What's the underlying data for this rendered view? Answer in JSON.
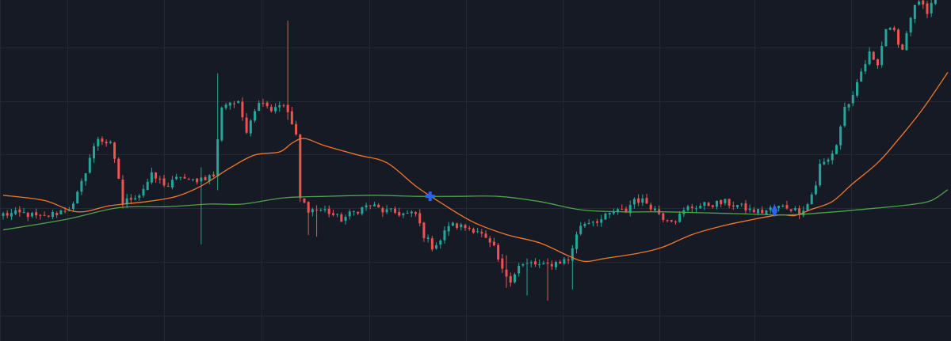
{
  "colors": {
    "background": "#161a25",
    "grid": "#242833",
    "up": "#26a69a",
    "down": "#ef5350",
    "ma_fast": "#f2772c",
    "ma_slow": "#4ea34c",
    "cross_marker": "#2962ff"
  },
  "chart_data": {
    "type": "candlestick",
    "grid": true,
    "y_range": [
      40,
      106
    ],
    "x_range": [
      0,
      229
    ],
    "candle_count": 230,
    "waypoints": [
      [
        0,
        64.5
      ],
      [
        5,
        64.7
      ],
      [
        9,
        63.8
      ],
      [
        13,
        64.8
      ],
      [
        17,
        66.2
      ],
      [
        19,
        70.5
      ],
      [
        21,
        75.5
      ],
      [
        23,
        79.3
      ],
      [
        26,
        78.0
      ],
      [
        28,
        71.5
      ],
      [
        29,
        66.5
      ],
      [
        31,
        67.8
      ],
      [
        33,
        68.4
      ],
      [
        36,
        72.0
      ],
      [
        40,
        70.0
      ],
      [
        43,
        72.0
      ],
      [
        45,
        70.8
      ],
      [
        48,
        71.5
      ],
      [
        51,
        72.0
      ],
      [
        53,
        85.5
      ],
      [
        55,
        86.3
      ],
      [
        57,
        85.8
      ],
      [
        59,
        81.0
      ],
      [
        61,
        85.0
      ],
      [
        63,
        86.7
      ],
      [
        65,
        84.8
      ],
      [
        67,
        86.0
      ],
      [
        69,
        84.3
      ],
      [
        71,
        79.5
      ],
      [
        72,
        67.5
      ],
      [
        74,
        65.5
      ],
      [
        78,
        65.3
      ],
      [
        82,
        63.5
      ],
      [
        85,
        65.0
      ],
      [
        89,
        66.4
      ],
      [
        92,
        65.2
      ],
      [
        97,
        64.6
      ],
      [
        100,
        64.5
      ],
      [
        102,
        60.5
      ],
      [
        104,
        58.3
      ],
      [
        106,
        59.5
      ],
      [
        108,
        62.5
      ],
      [
        112,
        62.0
      ],
      [
        115,
        61.5
      ],
      [
        117,
        59.5
      ],
      [
        119,
        57.8
      ],
      [
        121,
        53.5
      ],
      [
        123,
        52.0
      ],
      [
        125,
        54.5
      ],
      [
        128,
        55.0
      ],
      [
        131,
        54.5
      ],
      [
        134,
        55.2
      ],
      [
        137,
        55.8
      ],
      [
        138,
        58.2
      ],
      [
        140,
        62.5
      ],
      [
        142,
        63.2
      ],
      [
        145,
        63.5
      ],
      [
        148,
        65.0
      ],
      [
        151,
        65.2
      ],
      [
        153,
        67.5
      ],
      [
        156,
        66.8
      ],
      [
        158,
        65.5
      ],
      [
        160,
        64.0
      ],
      [
        163,
        63.5
      ],
      [
        166,
        65.8
      ],
      [
        169,
        66.2
      ],
      [
        172,
        66.5
      ],
      [
        175,
        66.8
      ],
      [
        178,
        66.2
      ],
      [
        181,
        65.3
      ],
      [
        184,
        65.0
      ],
      [
        187,
        65.8
      ],
      [
        190,
        66.0
      ],
      [
        193,
        65.0
      ],
      [
        195,
        66.5
      ],
      [
        197,
        70.3
      ],
      [
        198,
        74.0
      ],
      [
        200,
        75.0
      ],
      [
        202,
        78.0
      ],
      [
        204,
        85.2
      ],
      [
        206,
        87.0
      ],
      [
        208,
        92.0
      ],
      [
        210,
        95.5
      ],
      [
        212,
        94.0
      ],
      [
        214,
        100.5
      ],
      [
        216,
        99.5
      ],
      [
        218,
        96.5
      ],
      [
        220,
        103.0
      ],
      [
        222,
        106.0
      ],
      [
        224,
        103.0
      ],
      [
        226,
        106.5
      ],
      [
        229,
        106.8
      ]
    ],
    "wicks": [
      [
        48,
        73.6,
        58.7
      ],
      [
        52,
        91.8,
        69.2
      ],
      [
        69,
        102.0,
        82.8
      ],
      [
        74,
        66.4,
        60.5
      ],
      [
        76,
        66.2,
        60.2
      ],
      [
        122,
        56.6,
        50.3
      ],
      [
        127,
        55.5,
        48.8
      ],
      [
        132,
        54.8,
        47.8
      ],
      [
        138,
        54.8,
        50.0
      ]
    ],
    "series": [
      {
        "key": "ma_fast",
        "points": [
          [
            0,
            68.2
          ],
          [
            10,
            67.2
          ],
          [
            18,
            65.0
          ],
          [
            26,
            66.2
          ],
          [
            35,
            67.0
          ],
          [
            42,
            68.0
          ],
          [
            48,
            70.0
          ],
          [
            55,
            73.5
          ],
          [
            61,
            76.0
          ],
          [
            67,
            76.6
          ],
          [
            70,
            78.3
          ],
          [
            73,
            79.2
          ],
          [
            78,
            77.8
          ],
          [
            86,
            76.0
          ],
          [
            93,
            74.5
          ],
          [
            100,
            70.0
          ],
          [
            106,
            66.8
          ],
          [
            114,
            63.0
          ],
          [
            122,
            60.6
          ],
          [
            130,
            59.0
          ],
          [
            137,
            56.5
          ],
          [
            141,
            55.4
          ],
          [
            146,
            56.0
          ],
          [
            154,
            57.0
          ],
          [
            160,
            58.2
          ],
          [
            167,
            60.6
          ],
          [
            174,
            62.2
          ],
          [
            181,
            63.4
          ],
          [
            188,
            64.4
          ],
          [
            192,
            64.3
          ],
          [
            196,
            65.5
          ],
          [
            201,
            67.0
          ],
          [
            206,
            70.5
          ],
          [
            212,
            74.5
          ],
          [
            217,
            79.0
          ],
          [
            223,
            85.0
          ],
          [
            229,
            92.0
          ]
        ]
      },
      {
        "key": "ma_slow",
        "points": [
          [
            0,
            61.5
          ],
          [
            15,
            63.5
          ],
          [
            28,
            65.8
          ],
          [
            40,
            66.0
          ],
          [
            50,
            66.5
          ],
          [
            58,
            66.5
          ],
          [
            68,
            67.7
          ],
          [
            78,
            68.0
          ],
          [
            90,
            68.2
          ],
          [
            100,
            68.0
          ],
          [
            110,
            68.0
          ],
          [
            120,
            68.0
          ],
          [
            130,
            67.0
          ],
          [
            140,
            65.4
          ],
          [
            150,
            65.0
          ],
          [
            160,
            65.0
          ],
          [
            170,
            64.8
          ],
          [
            180,
            64.6
          ],
          [
            190,
            64.4
          ],
          [
            200,
            64.9
          ],
          [
            210,
            65.6
          ],
          [
            220,
            66.4
          ],
          [
            225,
            67.2
          ],
          [
            229,
            69.3
          ]
        ]
      }
    ],
    "markers": [
      {
        "x": 103.5,
        "y": 68.0,
        "shape": "cross"
      },
      {
        "x": 187,
        "y": 65.2,
        "shape": "diamond"
      }
    ]
  }
}
